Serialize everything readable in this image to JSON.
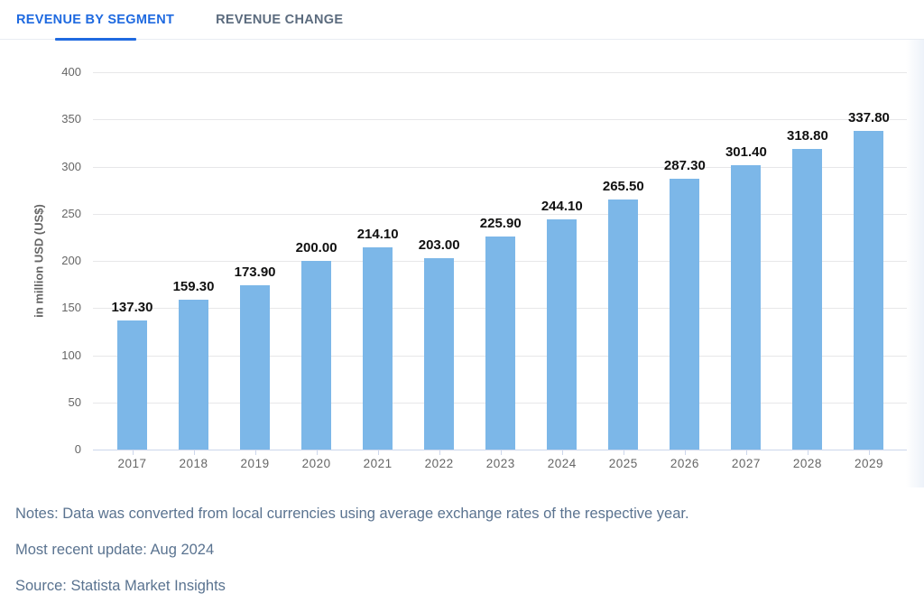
{
  "tabs": [
    {
      "label": "REVENUE BY SEGMENT",
      "active": true
    },
    {
      "label": "REVENUE CHANGE",
      "active": false
    }
  ],
  "colors": {
    "accent": "#1f6ae0",
    "bar": "#7cb7e8",
    "gridline": "#e7e7e9",
    "axis_line": "#ccd6eb",
    "tick_label": "#666666",
    "value_label": "#111111",
    "inactive_tab": "#5b6b7e",
    "footer_text": "#5a7390"
  },
  "chart_data": {
    "type": "bar",
    "title": "",
    "categories": [
      "2017",
      "2018",
      "2019",
      "2020",
      "2021",
      "2022",
      "2023",
      "2024",
      "2025",
      "2026",
      "2027",
      "2028",
      "2029"
    ],
    "values": [
      137.3,
      159.3,
      173.9,
      200.0,
      214.1,
      203.0,
      225.9,
      244.1,
      265.5,
      287.3,
      301.4,
      318.8,
      337.8
    ],
    "value_labels": [
      "137.30",
      "159.30",
      "173.90",
      "200.00",
      "214.10",
      "203.00",
      "225.90",
      "244.10",
      "265.50",
      "287.30",
      "301.40",
      "318.80",
      "337.80"
    ],
    "xlabel": "",
    "ylabel": "in million USD (US$)",
    "ylim": [
      0,
      400
    ],
    "yticks": [
      0,
      50,
      100,
      150,
      200,
      250,
      300,
      350,
      400
    ],
    "grid": "horizontal",
    "legend": "none",
    "bar_color": "#7cb7e8"
  },
  "footer": {
    "notes": "Notes: Data was converted from local currencies using average exchange rates of the respective year.",
    "updated": "Most recent update: Aug 2024",
    "source": "Source: Statista Market Insights"
  }
}
